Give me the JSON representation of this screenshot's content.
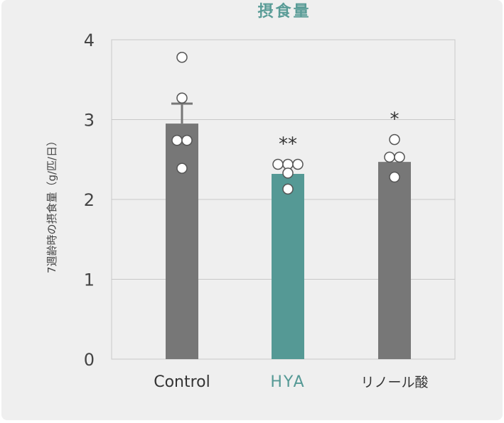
{
  "chart_data": {
    "type": "bar",
    "title": "摂食量",
    "ylabel": "7週齢時の摂食量（g/匹/日）",
    "xlabel": "",
    "ylim": [
      0,
      4
    ],
    "yticks": [
      "0",
      "1",
      "2",
      "3",
      "4"
    ],
    "grid": true,
    "categories": [
      "Control",
      "HYA",
      "リノール酸"
    ],
    "values": [
      2.95,
      2.32,
      2.47
    ],
    "error_upper": [
      0.25,
      0,
      0
    ],
    "significance": [
      "",
      "**",
      "*"
    ],
    "bar_colors": [
      "#777777",
      "#559995",
      "#777777"
    ],
    "label_colors": [
      "#333333",
      "#559995",
      "#333333"
    ],
    "points": [
      [
        3.78,
        3.27,
        2.74,
        2.74,
        2.39
      ],
      [
        2.44,
        2.44,
        2.44,
        2.33,
        2.13
      ],
      [
        2.75,
        2.53,
        2.53,
        2.28
      ]
    ]
  },
  "colors": {
    "title": "#5a9c97",
    "grid": "#c8c8c8",
    "axis_text": "#444444",
    "point_fill": "#ffffff",
    "point_stroke": "#555555"
  }
}
